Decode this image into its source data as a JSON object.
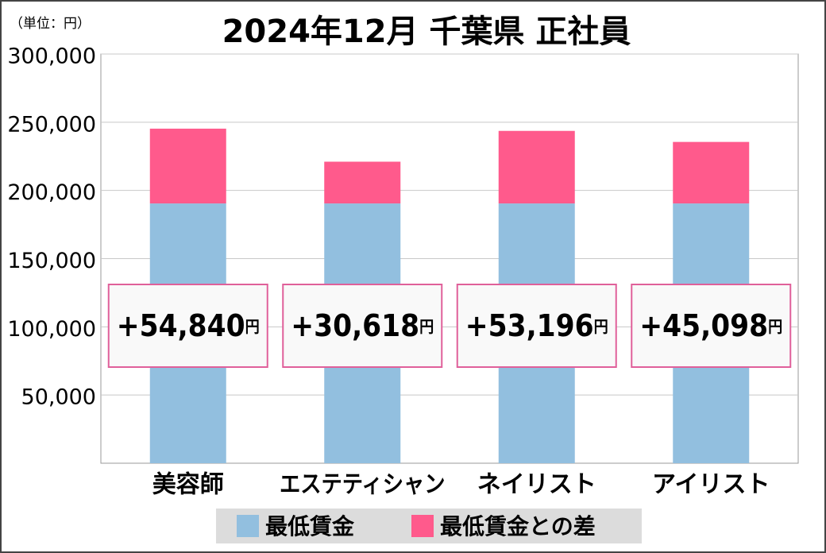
{
  "chart_data": {
    "type": "stacked_bar",
    "title": "2024年12月 千葉県 正社員",
    "unit_label": "（単位：円）",
    "categories": [
      "美容師",
      "エステティシャン",
      "ネイリスト",
      "アイリスト"
    ],
    "series": [
      {
        "name": "最低賃金",
        "color": "#92bfdf",
        "values": [
          190452,
          190452,
          190452,
          190452
        ]
      },
      {
        "name": "最低賃金との差",
        "color": "#ff5a8c",
        "values": [
          54840,
          30618,
          53196,
          45098
        ],
        "value_labels": [
          "+54,840",
          "+30,618",
          "+53,196",
          "+45,098"
        ],
        "value_label_unit": "円"
      }
    ],
    "ylim": [
      0,
      300000
    ],
    "yticks": [
      {
        "value": 50000,
        "label": "50,000"
      },
      {
        "value": 100000,
        "label": "100,000"
      },
      {
        "value": 150000,
        "label": "150,000"
      },
      {
        "value": 200000,
        "label": "200,000"
      },
      {
        "value": 250000,
        "label": "250,000"
      },
      {
        "value": 300000,
        "label": "300,000"
      }
    ],
    "grid": true,
    "legend": "bottom"
  }
}
